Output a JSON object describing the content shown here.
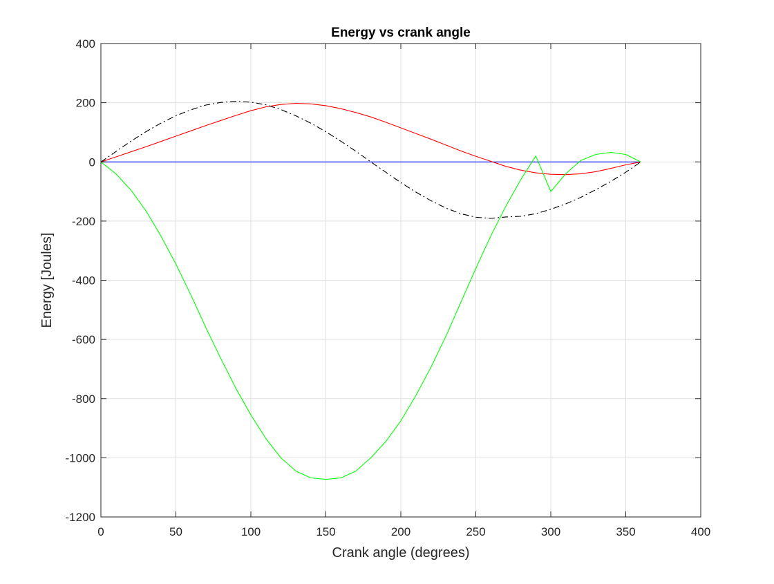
{
  "chart_data": {
    "type": "line",
    "title": "Energy vs crank angle",
    "xlabel": "Crank angle (degrees)",
    "ylabel": "Energy [Joules]",
    "xlim": [
      0,
      400
    ],
    "ylim": [
      -1200,
      400
    ],
    "xticks": [
      0,
      50,
      100,
      150,
      200,
      250,
      300,
      350,
      400
    ],
    "yticks": [
      -1200,
      -1000,
      -800,
      -600,
      -400,
      -200,
      0,
      200,
      400
    ],
    "grid": true,
    "legend": "none",
    "box": true,
    "series": [
      {
        "color": "#0000ff",
        "style": "solid",
        "x": [
          0,
          360
        ],
        "y": [
          0,
          0
        ]
      },
      {
        "color": "#ff0000",
        "style": "solid",
        "x": [
          0,
          10,
          20,
          30,
          40,
          50,
          60,
          70,
          80,
          90,
          100,
          110,
          120,
          130,
          140,
          150,
          160,
          170,
          180,
          190,
          200,
          210,
          220,
          230,
          240,
          250,
          260,
          270,
          280,
          290,
          300,
          310,
          320,
          330,
          340,
          350,
          360
        ],
        "y": [
          0,
          17,
          34,
          51,
          69,
          87,
          105,
          123,
          140,
          157,
          173,
          186,
          194,
          198,
          196,
          190,
          180,
          167,
          152,
          134,
          115,
          96,
          77,
          57,
          37,
          19,
          2,
          -15,
          -28,
          -37,
          -42,
          -43,
          -40,
          -33,
          -22,
          -10,
          0
        ]
      },
      {
        "color": "#000000",
        "style": "dashdot",
        "x": [
          0,
          10,
          20,
          30,
          40,
          50,
          60,
          70,
          80,
          90,
          100,
          110,
          120,
          130,
          140,
          150,
          160,
          170,
          180,
          190,
          200,
          210,
          220,
          230,
          240,
          250,
          260,
          270,
          280,
          290,
          300,
          310,
          320,
          330,
          340,
          350,
          360
        ],
        "y": [
          0,
          35,
          70,
          102,
          131,
          156,
          176,
          192,
          201,
          205,
          202,
          193,
          177,
          156,
          131,
          102,
          70,
          36,
          0,
          -35,
          -70,
          -102,
          -131,
          -156,
          -175,
          -187,
          -191,
          -186,
          -184,
          -175,
          -160,
          -142,
          -120,
          -94,
          -66,
          -35,
          0
        ]
      },
      {
        "color": "#00ff00",
        "style": "solid",
        "x": [
          0,
          10,
          20,
          30,
          40,
          50,
          60,
          70,
          80,
          90,
          100,
          110,
          120,
          130,
          140,
          150,
          160,
          170,
          180,
          190,
          200,
          210,
          220,
          230,
          240,
          250,
          260,
          270,
          280,
          290,
          300,
          310,
          320,
          330,
          340,
          350,
          360
        ],
        "y": [
          0,
          -40,
          -95,
          -165,
          -250,
          -345,
          -450,
          -560,
          -665,
          -765,
          -855,
          -935,
          -1000,
          -1045,
          -1068,
          -1073,
          -1068,
          -1045,
          -1000,
          -945,
          -875,
          -790,
          -695,
          -590,
          -475,
          -360,
          -250,
          -150,
          -60,
          20,
          -100,
          -40,
          5,
          25,
          32,
          25,
          0
        ]
      }
    ]
  }
}
